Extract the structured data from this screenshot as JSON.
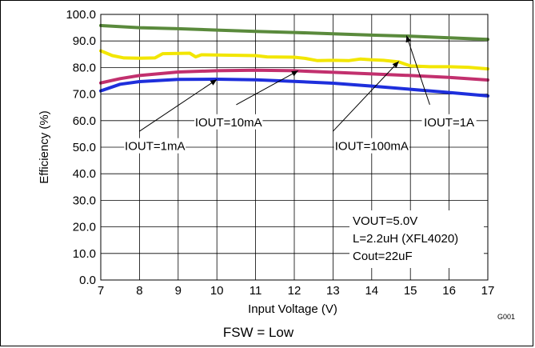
{
  "chart_data": {
    "type": "line",
    "xlabel": "Input Voltage (V)",
    "ylabel": "Efficiency (%)",
    "xlim": [
      7,
      17
    ],
    "ylim": [
      0,
      100
    ],
    "x_ticks": [
      "7",
      "8",
      "9",
      "10",
      "11",
      "12",
      "13",
      "14",
      "15",
      "16",
      "17"
    ],
    "y_ticks": [
      "0.0",
      "10.0",
      "20.0",
      "30.0",
      "40.0",
      "50.0",
      "60.0",
      "70.0",
      "80.0",
      "90.0",
      "100.0"
    ],
    "grid": true,
    "series": [
      {
        "name": "IOUT=1A",
        "color": "#5a8a3c",
        "points": [
          [
            7,
            95.8
          ],
          [
            8,
            95.0
          ],
          [
            9,
            94.6
          ],
          [
            10,
            94.1
          ],
          [
            11,
            93.6
          ],
          [
            12,
            93.2
          ],
          [
            13,
            92.7
          ],
          [
            14,
            92.2
          ],
          [
            15,
            91.8
          ],
          [
            16,
            91.2
          ],
          [
            17,
            90.6
          ]
        ]
      },
      {
        "name": "IOUT=100mA",
        "color": "#f2e600",
        "points": [
          [
            7,
            86.3
          ],
          [
            7.3,
            84.5
          ],
          [
            7.6,
            83.6
          ],
          [
            8.0,
            83.5
          ],
          [
            8.4,
            83.6
          ],
          [
            8.6,
            85.2
          ],
          [
            9.0,
            85.3
          ],
          [
            9.3,
            85.4
          ],
          [
            9.45,
            84.0
          ],
          [
            9.6,
            84.8
          ],
          [
            10,
            84.7
          ],
          [
            10.5,
            84.6
          ],
          [
            11,
            84.5
          ],
          [
            11.3,
            84.0
          ],
          [
            12,
            83.9
          ],
          [
            12.3,
            83.4
          ],
          [
            12.6,
            82.6
          ],
          [
            13,
            82.7
          ],
          [
            13.4,
            82.6
          ],
          [
            13.7,
            83.2
          ],
          [
            14.0,
            82.9
          ],
          [
            14.3,
            82.7
          ],
          [
            14.7,
            82.1
          ],
          [
            15.0,
            80.6
          ],
          [
            15.5,
            80.3
          ],
          [
            16,
            80.3
          ],
          [
            16.5,
            80.1
          ],
          [
            17,
            79.5
          ]
        ]
      },
      {
        "name": "IOUT=10mA",
        "color": "#c2306e",
        "points": [
          [
            7,
            74.2
          ],
          [
            7.5,
            75.8
          ],
          [
            8,
            77.0
          ],
          [
            9,
            78.3
          ],
          [
            10,
            78.8
          ],
          [
            11,
            79.0
          ],
          [
            12,
            78.8
          ],
          [
            13,
            78.2
          ],
          [
            14,
            77.6
          ],
          [
            15,
            77.0
          ],
          [
            16,
            76.3
          ],
          [
            17,
            75.3
          ]
        ]
      },
      {
        "name": "IOUT=1mA",
        "color": "#1e2fdc",
        "points": [
          [
            7,
            71.2
          ],
          [
            7.5,
            73.7
          ],
          [
            8,
            74.7
          ],
          [
            9,
            75.5
          ],
          [
            10,
            75.6
          ],
          [
            11,
            75.4
          ],
          [
            12,
            74.8
          ],
          [
            13,
            74.1
          ],
          [
            14,
            73.0
          ],
          [
            15,
            71.8
          ],
          [
            16,
            70.6
          ],
          [
            17,
            69.3
          ]
        ]
      }
    ],
    "annotations": [
      {
        "text": "IOUT=1mA",
        "x": 8.4,
        "y": 49.5,
        "arrow_from": [
          8.0,
          56.0
        ],
        "arrow_to": [
          10.0,
          75.5
        ]
      },
      {
        "text": "IOUT=10mA",
        "x": 10.3,
        "y": 58.5,
        "arrow_from": [
          10.5,
          66.0
        ],
        "arrow_to": [
          12.1,
          78.8
        ]
      },
      {
        "text": "IOUT=100mA",
        "x": 14.0,
        "y": 49.5,
        "arrow_from": [
          13.0,
          56.0
        ],
        "arrow_to": [
          14.7,
          82.3
        ]
      },
      {
        "text": "IOUT=1A",
        "x": 16.0,
        "y": 58.5,
        "arrow_from": [
          15.5,
          66.0
        ],
        "arrow_to": [
          14.9,
          92.0
        ]
      }
    ],
    "conditions": [
      "VOUT=5.0V",
      "L=2.2uH (XFL4020)",
      "Cout=22uF"
    ],
    "figure_code": "G001",
    "caption": "FSW = Low"
  }
}
